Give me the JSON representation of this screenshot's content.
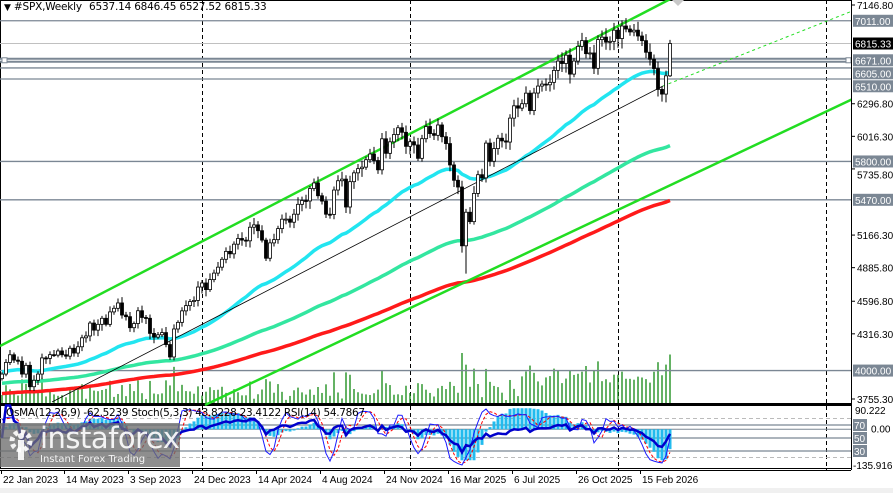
{
  "header": {
    "symbol": "#SPX,Weekly",
    "ohlc": "6537.14 6846.45 6527.52 6815.33",
    "dropdown_icon": "triangle-down-icon"
  },
  "indicator_header": "OsMA(12,26,9) -62.5239  Stoch(5,3,3) 43.8228 23.4122  RSI(14) 54.7867",
  "watermark": {
    "brand": "instaforex",
    "tagline": "Instant Forex Trading",
    "icon": "gear-figure-logo"
  },
  "colors": {
    "channel": "#22dd22",
    "ma_fast": "#22e5f0",
    "ma_mid": "#33e6a0",
    "ma_slow": "#ff1a1a",
    "volume": "#118811",
    "level_line": "#7b8794",
    "osma": "#22bbee",
    "stoch_main": "#1a1aff",
    "stoch_signal": "#ff0000",
    "rsi": "#0000cc"
  },
  "chart_data": {
    "type": "candlestick",
    "symbol": "#SPX",
    "timeframe": "Weekly",
    "last_bar": {
      "open": 6537.14,
      "high": 6846.45,
      "low": 6527.52,
      "close": 6815.33
    },
    "current_price": "6815.33",
    "weekly_closes": [
      3970,
      4070,
      4136,
      4090,
      4080,
      3970,
      4045,
      3861,
      3916,
      3970,
      4109,
      4105,
      4137,
      4133,
      4169,
      4136,
      4124,
      4192,
      4151,
      4205,
      4282,
      4298,
      4409,
      4348,
      4398,
      4450,
      4398,
      4505,
      4536,
      4582,
      4478,
      4464,
      4369,
      4405,
      4515,
      4457,
      4450,
      4320,
      4288,
      4308,
      4327,
      4224,
      4117,
      4358,
      4415,
      4514,
      4559,
      4594,
      4604,
      4719,
      4754,
      4697,
      4783,
      4839,
      4890,
      4958,
      5026,
      5005,
      5088,
      5137,
      5123,
      5117,
      5234,
      5254,
      5204,
      5123,
      4967,
      5099,
      5127,
      5222,
      5303,
      5304,
      5277,
      5346,
      5431,
      5464,
      5460,
      5567,
      5615,
      5505,
      5459,
      5346,
      5344,
      5554,
      5634,
      5648,
      5408,
      5626,
      5702,
      5738,
      5751,
      5815,
      5864,
      5808,
      5728,
      5995,
      5870,
      5969,
      6032,
      6090,
      6051,
      5930,
      5970,
      5942,
      5827,
      5996,
      6101,
      6040,
      6025,
      6114,
      6013,
      5954,
      5770,
      5638,
      5580,
      5074,
      5363,
      5282,
      5525,
      5686,
      5659,
      5958,
      5802,
      5911,
      6000,
      5977,
      5967,
      6173,
      6279,
      6259,
      6297,
      6388,
      6238,
      6389,
      6449,
      6466,
      6460,
      6481,
      6584,
      6664,
      6643,
      6715,
      6552,
      6664,
      6791,
      6840,
      6728,
      6734,
      6602,
      6849,
      6870,
      6827,
      6834,
      6930,
      6858,
      6966,
      6940,
      6915,
      6930,
      6880,
      6840,
      6740,
      6680,
      6600,
      6420,
      6380,
      6537,
      6815.33
    ],
    "price_axis": {
      "min": 3755.3,
      "max": 7146.8,
      "ticks": [
        "7146.80",
        "6296.80",
        "6016.30",
        "5735.80",
        "5166.30",
        "4885.80",
        "4596.80",
        "4316.30",
        "3755.30"
      ]
    },
    "levels": [
      {
        "value": 7011,
        "label": "7011.00"
      },
      {
        "value": 6671,
        "label": "6671.00",
        "thick": true
      },
      {
        "value": 6605,
        "label": "6605.00"
      },
      {
        "value": 6510,
        "label": "6510.00"
      },
      {
        "value": 5800,
        "label": "5800.00"
      },
      {
        "value": 5470,
        "label": "5470.00"
      },
      {
        "value": 4000,
        "label": "4000.00"
      }
    ],
    "time_axis": [
      "22 Jan 2023",
      "14 May 2023",
      "3 Sep 2023",
      "24 Dec 2023",
      "14 Apr 2024",
      "4 Aug 2024",
      "24 Nov 2024",
      "16 Mar 2025",
      "6 Jul 2025",
      "26 Oct 2025",
      "15 Feb 2026"
    ],
    "indicator_axis": {
      "max": "90.222",
      "zero": "0.00",
      "min": "-135.9167",
      "levels": [
        "70",
        "50",
        "30"
      ]
    },
    "indicators": {
      "osma": {
        "params": "12,26,9",
        "value": -62.5239
      },
      "stoch": {
        "params": "5,3,3",
        "main": 43.8228,
        "signal": 23.4122
      },
      "rsi": {
        "params": "14",
        "value": 54.7867
      }
    }
  }
}
